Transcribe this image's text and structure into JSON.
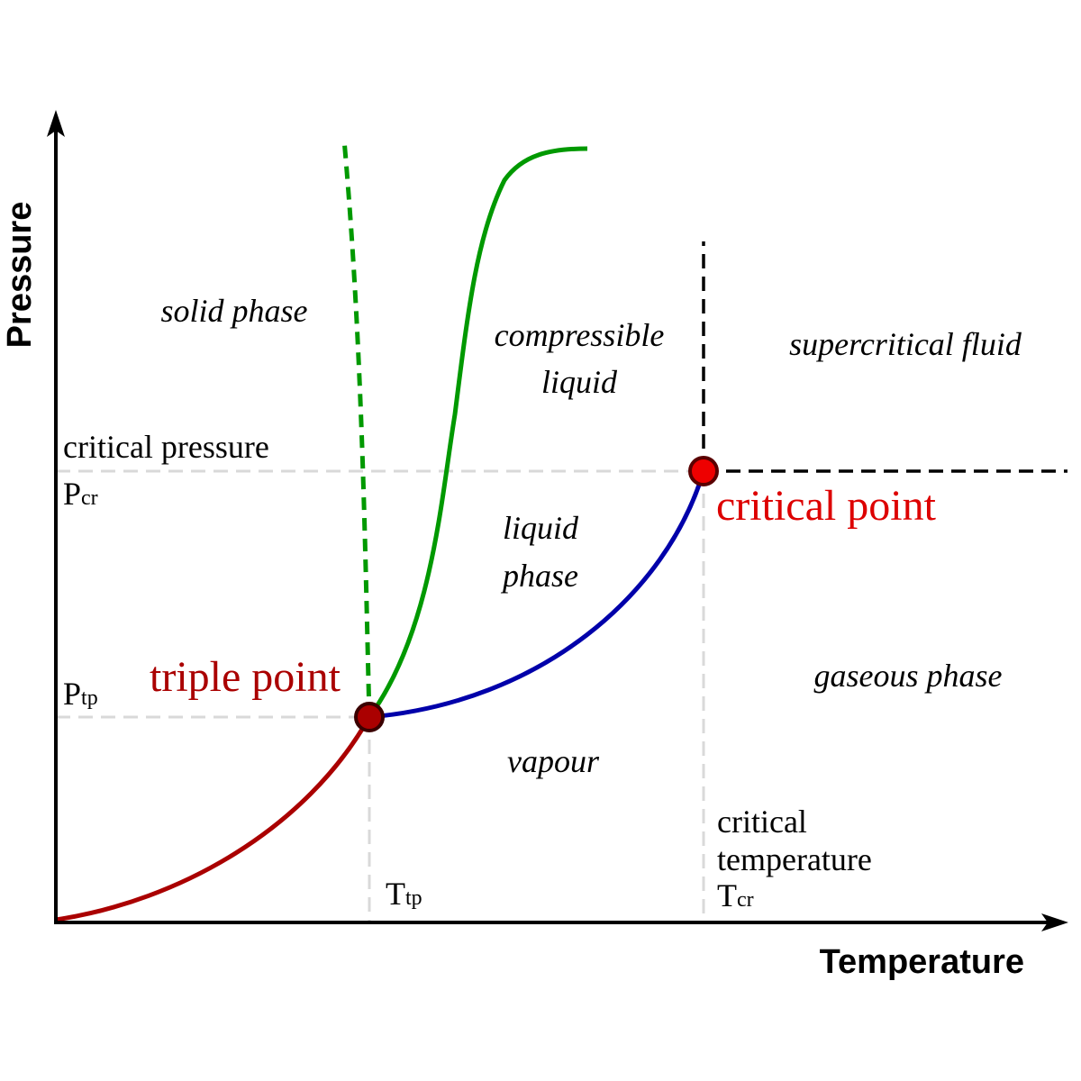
{
  "axes": {
    "x_label": "Temperature",
    "y_label": "Pressure"
  },
  "regions": {
    "solid": "solid phase",
    "compressible_line1": "compressible",
    "compressible_line2": "liquid",
    "liquid_line1": "liquid",
    "liquid_line2": "phase",
    "supercritical": "supercritical fluid",
    "gaseous": "gaseous phase",
    "vapour": "vapour"
  },
  "labels": {
    "critical_pressure": "critical pressure",
    "p_cr_main": "P",
    "p_cr_sub": "cr",
    "p_tp_main": "P",
    "p_tp_sub": "tp",
    "t_tp_main": "T",
    "t_tp_sub": "tp",
    "critical_temperature_line1": "critical",
    "critical_temperature_line2": "temperature",
    "t_cr_main": "T",
    "t_cr_sub": "cr"
  },
  "points": {
    "triple": "triple point",
    "critical": "critical point"
  },
  "colors": {
    "sublimation_curve": "#aa0000",
    "vaporization_curve": "#0000aa",
    "melting_curve": "#009900",
    "triple_point": "#aa0000",
    "critical_point": "#dd0000",
    "guide_lines": "#d9d9d9",
    "axis": "#000000"
  }
}
